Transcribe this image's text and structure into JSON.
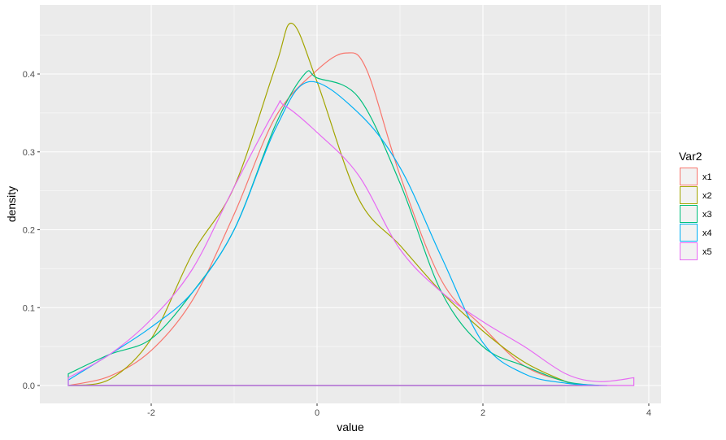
{
  "chart_data": {
    "type": "line",
    "subtype": "density",
    "title": "",
    "xlabel": "value",
    "ylabel": "density",
    "xlim": [
      -3.0,
      3.82
    ],
    "ylim": [
      0,
      0.49
    ],
    "x_ticks": [
      -2,
      0,
      2,
      4
    ],
    "x_tick_labels": [
      "-2",
      "0",
      "2",
      "4"
    ],
    "y_ticks": [
      0.0,
      0.1,
      0.2,
      0.3,
      0.4
    ],
    "y_tick_labels": [
      "0.0",
      "0.1",
      "0.2",
      "0.3",
      "0.4"
    ],
    "grid": true,
    "legend": {
      "title": "Var2",
      "position": "right"
    },
    "series": [
      {
        "name": "x1",
        "color": "#F8766D",
        "x": [
          -3.0,
          -2.5,
          -2.0,
          -1.5,
          -1.0,
          -0.5,
          0.0,
          0.35,
          0.6,
          1.0,
          1.5,
          2.0,
          2.5,
          3.0,
          3.2
        ],
        "y": [
          0.0,
          0.012,
          0.045,
          0.11,
          0.22,
          0.345,
          0.405,
          0.427,
          0.405,
          0.27,
          0.135,
          0.075,
          0.025,
          0.005,
          0.0
        ]
      },
      {
        "name": "x2",
        "color": "#A3A500",
        "x": [
          -3.0,
          -2.5,
          -2.0,
          -1.5,
          -1.0,
          -0.5,
          -0.3,
          0.0,
          0.5,
          1.0,
          1.5,
          2.0,
          2.5,
          3.0,
          3.2
        ],
        "y": [
          0.0,
          0.008,
          0.06,
          0.17,
          0.255,
          0.41,
          0.465,
          0.39,
          0.24,
          0.18,
          0.12,
          0.07,
          0.03,
          0.005,
          0.0
        ]
      },
      {
        "name": "x3",
        "color": "#00BF7D",
        "x": [
          -3.0,
          -2.5,
          -2.0,
          -1.5,
          -1.0,
          -0.5,
          -0.15,
          0.0,
          0.5,
          1.0,
          1.5,
          2.0,
          2.5,
          3.0,
          3.4
        ],
        "y": [
          0.015,
          0.04,
          0.06,
          0.12,
          0.2,
          0.335,
          0.4,
          0.395,
          0.37,
          0.26,
          0.12,
          0.05,
          0.025,
          0.005,
          0.0
        ]
      },
      {
        "name": "x4",
        "color": "#00B0F6",
        "x": [
          -3.0,
          -2.5,
          -2.0,
          -1.5,
          -1.0,
          -0.5,
          -0.1,
          0.5,
          1.0,
          1.5,
          2.0,
          2.5,
          3.0,
          3.5
        ],
        "y": [
          0.007,
          0.04,
          0.075,
          0.12,
          0.2,
          0.33,
          0.39,
          0.35,
          0.28,
          0.165,
          0.055,
          0.015,
          0.003,
          0.0
        ]
      },
      {
        "name": "x5",
        "color": "#E76BF3",
        "x": [
          -3.0,
          -2.5,
          -2.0,
          -1.5,
          -1.0,
          -0.5,
          -0.4,
          0.0,
          0.5,
          1.0,
          1.5,
          2.0,
          2.5,
          3.0,
          3.4,
          3.82
        ],
        "y": [
          0.01,
          0.04,
          0.085,
          0.15,
          0.255,
          0.355,
          0.36,
          0.325,
          0.27,
          0.175,
          0.12,
          0.082,
          0.05,
          0.015,
          0.005,
          0.01
        ]
      }
    ]
  }
}
